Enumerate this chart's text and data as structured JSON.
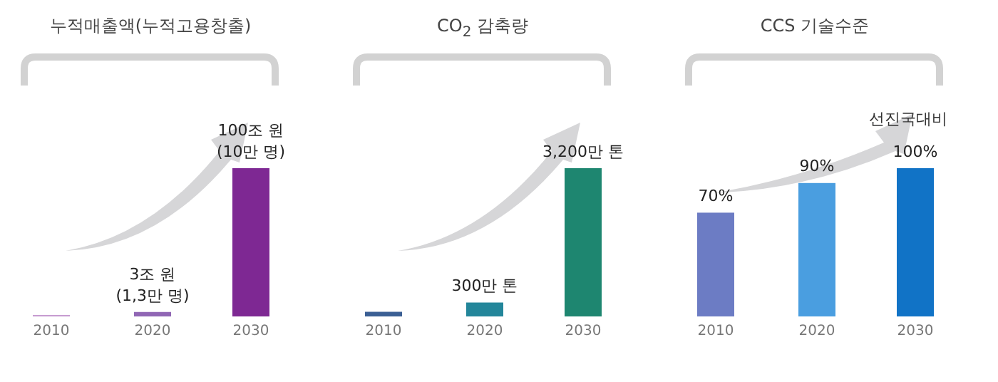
{
  "chart_data": [
    {
      "type": "bar",
      "title": "누적매출액(누적고용창출)",
      "categories": [
        "2010",
        "2020",
        "2030"
      ],
      "values": [
        1,
        3,
        100
      ],
      "colors": [
        "#c69bd0",
        "#9066b4",
        "#7e2893"
      ],
      "value_labels": [
        null,
        "3조 원 (1,3만 명)",
        "100조 원 (10만 명)"
      ]
    },
    {
      "type": "bar",
      "title": "CO$_{2}$ 감축량",
      "categories": [
        "2010",
        "2020",
        "2030"
      ],
      "values": [
        100,
        300,
        3200
      ],
      "colors": [
        "#3b5f94",
        "#23869a",
        "#1e8670"
      ],
      "value_labels": [
        null,
        "300만 톤",
        "3,200만 톤"
      ]
    },
    {
      "type": "bar",
      "title": "CCS 기술수준",
      "categories": [
        "2010",
        "2020",
        "2030"
      ],
      "values": [
        70,
        90,
        100
      ],
      "colors": [
        "#6c7cc4",
        "#4a9ee0",
        "#1173c6"
      ],
      "value_labels": [
        "70%",
        "90%",
        "100%"
      ],
      "annotations": [
        "선진국대비"
      ]
    }
  ]
}
